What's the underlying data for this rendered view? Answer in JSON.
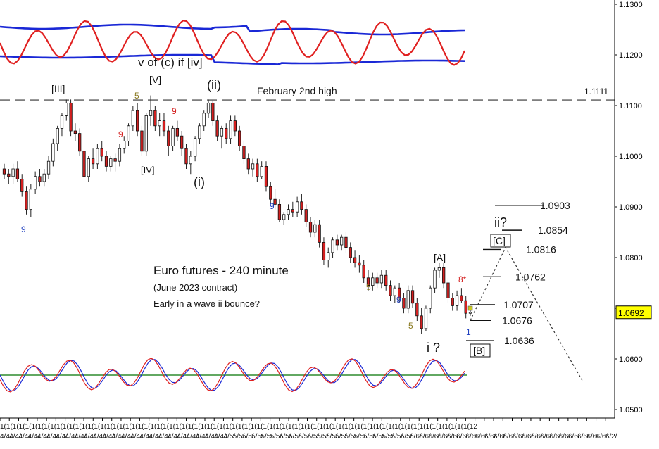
{
  "chart_data": {
    "type": "candlestick",
    "title": "Euro futures - 240 minute",
    "subtitle": "(June 2023 contract)",
    "note": "Early in a wave ii bounce?",
    "y_axis": {
      "ticks": [
        "1.1300",
        "1.1200",
        "1.1100",
        "1.1000",
        "1.0900",
        "1.0800",
        "1.0700",
        "1.0600",
        "1.0500"
      ],
      "range": [
        1.0488,
        1.1315
      ],
      "current_price": "1.0692"
    },
    "x_axis_repeat_label": "1(1(1(1(1(1(1(1(1(1(1(1(1(1(1(1(1(1(1(1(1(1(1(1(1(1(1(1(1(1(1(1(1(1(1(1(1(1(1(1(1(1(1(1(1(1(1(1(1(1(1(1(1(1(1(1(1(1(1(1(1(1(1(1(1(1(1(1(1(1(1(1(1(1(1(12",
    "x_axis_month_labels": [
      "4/4/",
      "4/4/",
      "4/4/",
      "4/4/",
      "4/4/",
      "4/4/",
      "4/4/",
      "4/4/",
      "4/4/",
      "4/4/",
      "4/4/",
      "4/4/",
      "4/4/",
      "4/4/",
      "4/4/",
      "4/4/",
      "4/4/",
      "4/4/",
      "4/4/",
      "4/4/",
      "4/4/",
      "4/4/",
      "4/4/",
      "4/4/",
      "4/5/",
      "5/5/",
      "5/5/",
      "5/5/",
      "5/5/",
      "5/5/",
      "5/5/",
      "5/5/",
      "5/5/",
      "5/5/",
      "5/5/",
      "5/5/",
      "5/5/",
      "5/5/",
      "5/5/",
      "5/5/",
      "5/5/",
      "5/5/",
      "5/5/",
      "5/5/",
      "5/6/",
      "6/6/",
      "6/6/",
      "6/6/",
      "6/6/",
      "6/6/",
      "6/6/",
      "6/6/",
      "6/6/",
      "6/6/",
      "6/6/",
      "6/6/",
      "6/6/",
      "6/6/",
      "6/6/",
      "6/6/",
      "6/6/",
      "6/6/",
      "6/6/",
      "6/6/",
      "6/6/",
      "6/2/"
    ],
    "horizontal_lines": [
      {
        "label": "February 2nd high",
        "value_label": "1.1111",
        "value": 1.1111
      }
    ],
    "target_levels": [
      {
        "label": "1.0903",
        "value": 1.0903
      },
      {
        "label": "1.0854",
        "value": 1.0854
      },
      {
        "label": "1.0816",
        "value": 1.0816
      },
      {
        "label": "1.0762",
        "value": 1.0762
      },
      {
        "label": "1.0707",
        "value": 1.0707
      },
      {
        "label": "1.0676",
        "value": 1.0676
      },
      {
        "label": "1.0636",
        "value": 1.0636
      }
    ],
    "wave_labels": [
      {
        "text": "v of (c) if [iv]",
        "price": 1.1185
      },
      {
        "text": "[V]",
        "price": 1.1135
      },
      {
        "text": "[III]",
        "price": 1.1105
      },
      {
        "text": "(ii)",
        "price": 1.1135
      },
      {
        "text": "[IV]",
        "price": 1.0975
      },
      {
        "text": "(i)",
        "price": 1.0955
      },
      {
        "text": "[A]",
        "price": 1.0795
      },
      {
        "text": "ii?",
        "price": 1.0845
      },
      {
        "text": "[C]",
        "price": 1.0823
      },
      {
        "text": "[B]",
        "price": 1.0625
      },
      {
        "text": "i ?",
        "price": 1.0628
      }
    ],
    "count_labels": [
      {
        "text": "9",
        "color": "#1f3fbf"
      },
      {
        "text": "9",
        "color": "#d42020"
      },
      {
        "text": "5",
        "color": "#8a7a20"
      },
      {
        "text": "9",
        "color": "#d42020"
      },
      {
        "text": "9",
        "color": "#1f3fbf"
      },
      {
        "text": "5",
        "color": "#8a7a20"
      },
      {
        "text": "9",
        "color": "#1f3fbf"
      },
      {
        "text": "5",
        "color": "#8a7a20"
      },
      {
        "text": "8*",
        "color": "#d42020"
      },
      {
        "text": "1",
        "color": "#1f3fbf"
      }
    ],
    "candles": [
      [
        1.0975,
        1.0985,
        1.0955,
        1.0965
      ],
      [
        1.0965,
        1.0975,
        1.0945,
        1.096
      ],
      [
        1.096,
        1.0985,
        1.0945,
        1.0975
      ],
      [
        1.0975,
        1.099,
        1.095,
        1.0955
      ],
      [
        1.0955,
        1.0965,
        1.092,
        1.093
      ],
      [
        1.093,
        1.094,
        1.0885,
        1.0895
      ],
      [
        1.0895,
        1.0945,
        1.088,
        1.0935
      ],
      [
        1.0935,
        1.097,
        1.0925,
        1.096
      ],
      [
        1.096,
        1.0975,
        1.094,
        1.095
      ],
      [
        1.095,
        1.0975,
        1.094,
        1.0965
      ],
      [
        1.0965,
        1.1,
        1.0955,
        1.099
      ],
      [
        1.099,
        1.1035,
        1.098,
        1.1025
      ],
      [
        1.1025,
        1.106,
        1.101,
        1.1055
      ],
      [
        1.1055,
        1.1085,
        1.104,
        1.108
      ],
      [
        1.108,
        1.1112,
        1.107,
        1.1105
      ],
      [
        1.1105,
        1.1112,
        1.104,
        1.105
      ],
      [
        1.105,
        1.1065,
        1.103,
        1.1045
      ],
      [
        1.1045,
        1.1055,
        1.1,
        1.101
      ],
      [
        1.101,
        1.102,
        1.095,
        1.096
      ],
      [
        1.096,
        1.1,
        1.095,
        1.0995
      ],
      [
        1.0995,
        1.1015,
        1.0975,
        1.0985
      ],
      [
        1.0985,
        1.1025,
        1.0975,
        1.1015
      ],
      [
        1.1015,
        1.103,
        1.099,
        1.1
      ],
      [
        1.1,
        1.101,
        1.097,
        1.098
      ],
      [
        1.098,
        1.1,
        1.097,
        1.0995
      ],
      [
        1.0995,
        1.1005,
        1.097,
        1.099
      ],
      [
        1.099,
        1.1025,
        1.098,
        1.1015
      ],
      [
        1.1015,
        1.104,
        1.1005,
        1.103
      ],
      [
        1.103,
        1.1065,
        1.102,
        1.106
      ],
      [
        1.106,
        1.11,
        1.105,
        1.109
      ],
      [
        1.109,
        1.1105,
        1.104,
        1.105
      ],
      [
        1.105,
        1.106,
        1.1,
        1.101
      ],
      [
        1.101,
        1.1085,
        1.1,
        1.108
      ],
      [
        1.108,
        1.112,
        1.106,
        1.109
      ],
      [
        1.109,
        1.11,
        1.105,
        1.106
      ],
      [
        1.106,
        1.1085,
        1.104,
        1.107
      ],
      [
        1.107,
        1.1085,
        1.104,
        1.105
      ],
      [
        1.105,
        1.106,
        1.1,
        1.102
      ],
      [
        1.102,
        1.106,
        1.101,
        1.1055
      ],
      [
        1.1055,
        1.107,
        1.103,
        1.104
      ],
      [
        1.104,
        1.105,
        1.1,
        1.1015
      ],
      [
        1.1015,
        1.1025,
        1.0975,
        1.0985
      ],
      [
        1.0985,
        1.101,
        1.0965,
        1.1
      ],
      [
        1.1,
        1.104,
        1.099,
        1.1035
      ],
      [
        1.1035,
        1.1065,
        1.1025,
        1.106
      ],
      [
        1.106,
        1.109,
        1.105,
        1.1085
      ],
      [
        1.1085,
        1.1112,
        1.1075,
        1.1105
      ],
      [
        1.1105,
        1.111,
        1.106,
        1.107
      ],
      [
        1.107,
        1.108,
        1.103,
        1.104
      ],
      [
        1.104,
        1.106,
        1.1015,
        1.1055
      ],
      [
        1.1055,
        1.1065,
        1.1025,
        1.1035
      ],
      [
        1.1035,
        1.108,
        1.1025,
        1.107
      ],
      [
        1.107,
        1.108,
        1.104,
        1.105
      ],
      [
        1.105,
        1.106,
        1.101,
        1.102
      ],
      [
        1.102,
        1.103,
        1.0985,
        1.0995
      ],
      [
        1.0995,
        1.1005,
        1.0965,
        1.0975
      ],
      [
        1.0975,
        1.0995,
        1.096,
        1.0985
      ],
      [
        1.0985,
        1.0995,
        1.095,
        1.096
      ],
      [
        1.096,
        1.099,
        1.0955,
        1.098
      ],
      [
        1.098,
        1.099,
        1.093,
        1.094
      ],
      [
        1.094,
        1.095,
        1.0905,
        1.0915
      ],
      [
        1.0915,
        1.0935,
        1.0895,
        1.0905
      ],
      [
        1.0905,
        1.0915,
        1.087,
        1.0875
      ],
      [
        1.0875,
        1.089,
        1.0865,
        1.0885
      ],
      [
        1.0885,
        1.0905,
        1.0875,
        1.0895
      ],
      [
        1.0895,
        1.091,
        1.088,
        1.089
      ],
      [
        1.089,
        1.092,
        1.088,
        1.091
      ],
      [
        1.091,
        1.0925,
        1.0885,
        1.0895
      ],
      [
        1.0895,
        1.0905,
        1.086,
        1.087
      ],
      [
        1.087,
        1.088,
        1.084,
        1.085
      ],
      [
        1.085,
        1.0875,
        1.084,
        1.0865
      ],
      [
        1.0865,
        1.0875,
        1.082,
        1.083
      ],
      [
        1.083,
        1.084,
        1.0785,
        1.0795
      ],
      [
        1.0795,
        1.082,
        1.078,
        1.081
      ],
      [
        1.081,
        1.084,
        1.08,
        1.0835
      ],
      [
        1.0835,
        1.0845,
        1.0815,
        1.0825
      ],
      [
        1.0825,
        1.0845,
        1.0815,
        1.084
      ],
      [
        1.084,
        1.085,
        1.081,
        1.082
      ],
      [
        1.082,
        1.083,
        1.079,
        1.08
      ],
      [
        1.08,
        1.0815,
        1.078,
        1.079
      ],
      [
        1.079,
        1.0805,
        1.077,
        1.0785
      ],
      [
        1.0785,
        1.0795,
        1.075,
        1.076
      ],
      [
        1.076,
        1.0775,
        1.0735,
        1.0745
      ],
      [
        1.0745,
        1.077,
        1.0735,
        1.076
      ],
      [
        1.076,
        1.077,
        1.074,
        1.075
      ],
      [
        1.075,
        1.0775,
        1.074,
        1.0765
      ],
      [
        1.0765,
        1.0775,
        1.0735,
        1.0745
      ],
      [
        1.0745,
        1.0755,
        1.0715,
        1.0725
      ],
      [
        1.0725,
        1.0745,
        1.071,
        1.074
      ],
      [
        1.074,
        1.075,
        1.071,
        1.072
      ],
      [
        1.072,
        1.073,
        1.069,
        1.07
      ],
      [
        1.07,
        1.0745,
        1.069,
        1.0735
      ],
      [
        1.0735,
        1.0745,
        1.07,
        1.071
      ],
      [
        1.071,
        1.072,
        1.0675,
        1.0685
      ],
      [
        1.0685,
        1.07,
        1.065,
        1.066
      ],
      [
        1.066,
        1.0705,
        1.0655,
        1.07
      ],
      [
        1.07,
        1.0745,
        1.069,
        1.074
      ],
      [
        1.074,
        1.078,
        1.073,
        1.0775
      ],
      [
        1.0775,
        1.079,
        1.076,
        1.078
      ],
      [
        1.078,
        1.079,
        1.074,
        1.075
      ],
      [
        1.075,
        1.076,
        1.071,
        1.072
      ],
      [
        1.072,
        1.073,
        1.0695,
        1.0705
      ],
      [
        1.0705,
        1.0735,
        1.0695,
        1.0725
      ],
      [
        1.0725,
        1.074,
        1.071,
        1.0715
      ],
      [
        1.0715,
        1.0725,
        1.068,
        1.069
      ],
      [
        1.069,
        1.07,
        1.0685,
        1.0692
      ]
    ],
    "top_oscillator": {
      "colors": {
        "line": "#e02020",
        "bands": "#1a28d6"
      }
    },
    "bottom_oscillator": {
      "colors": {
        "fast": "#e02020",
        "slow": "#1a28d6",
        "zero": "#2e8b2e"
      }
    },
    "colors": {
      "bull": "#ffffff",
      "bear": "#d42020",
      "wick": "#222222",
      "projection": "#333333",
      "price_tag": "#ffff00"
    }
  }
}
